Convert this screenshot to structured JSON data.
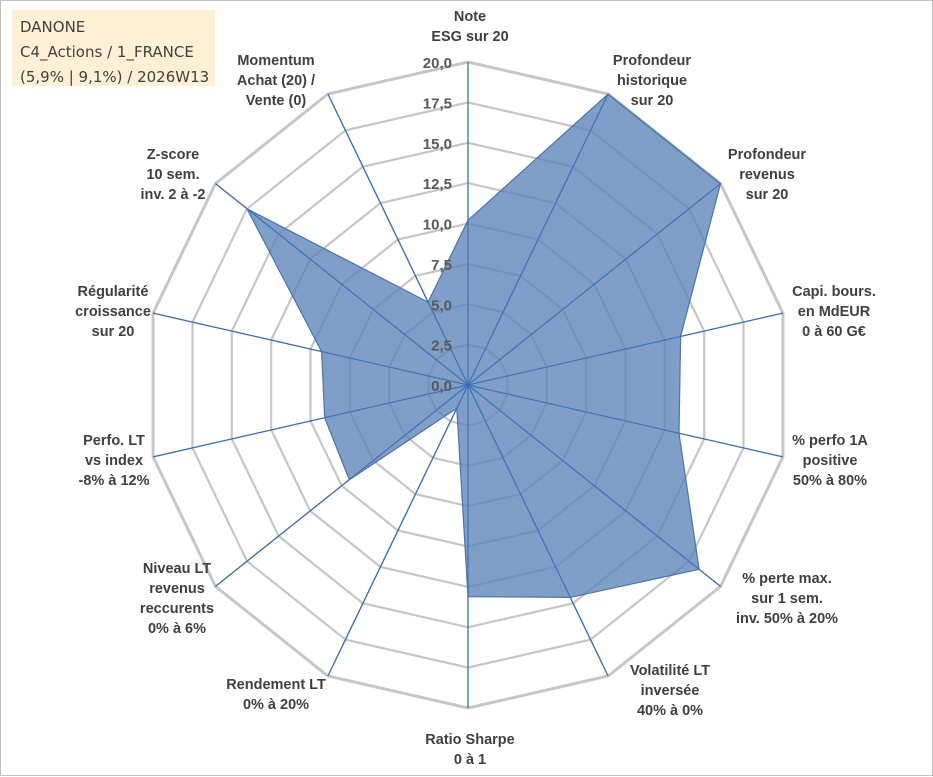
{
  "info": {
    "line1": "DANONE",
    "line2": "C4_Actions / 1_FRANCE",
    "line3": "(5,9% | 9,1%) / 2026W13"
  },
  "colors": {
    "fill": "#5b84b8",
    "fill_opacity": 0.78,
    "axis_line": "#3a6fb5",
    "grid": "#c6c6c6",
    "label_text": "#404040"
  },
  "chart_data": {
    "type": "radar",
    "title": "",
    "rmin": 0,
    "rmax": 20,
    "tick_values": [
      0,
      2.5,
      5,
      7.5,
      10,
      12.5,
      15,
      17.5,
      20
    ],
    "tick_labels": [
      "0,0",
      "2,5",
      "5,0",
      "7,5",
      "10,0",
      "12,5",
      "15,0",
      "17,5",
      "20,0"
    ],
    "axes": [
      {
        "label": [
          "Note",
          "ESG sur 20"
        ],
        "value": 10.2
      },
      {
        "label": [
          "Profondeur",
          "historique",
          "sur 20"
        ],
        "value": 20
      },
      {
        "label": [
          "Profondeur",
          "revenus",
          "sur 20"
        ],
        "value": 20
      },
      {
        "label": [
          "Capi. bours.",
          "en MdEUR",
          "0 à 60 G€"
        ],
        "value": 13.5
      },
      {
        "label": [
          "% perfo 1A",
          "positive",
          "50% à 80%"
        ],
        "value": 13.4
      },
      {
        "label": [
          "% perte max.",
          "sur 1 sem.",
          "inv. 50% à 20%"
        ],
        "value": 18.3
      },
      {
        "label": [
          "Volatilité LT",
          "inversée",
          "40% à 0%"
        ],
        "value": 14.6
      },
      {
        "label": [
          "Ratio Sharpe",
          "0 à 1"
        ],
        "value": 13.1
      },
      {
        "label": [
          "Rendement LT",
          "0% à 20%"
        ],
        "value": 1.6
      },
      {
        "label": [
          "Niveau LT",
          "revenus",
          "reccurents",
          "0% à 6%"
        ],
        "value": 9.4
      },
      {
        "label": [
          "Perfo. LT",
          "vs index",
          "-8% à 12%"
        ],
        "value": 9.1
      },
      {
        "label": [
          "Régularité",
          "croissance",
          "sur 20"
        ],
        "value": 9.3
      },
      {
        "label": [
          "Z-score",
          "10 sem.",
          "inv. 2 à -2"
        ],
        "value": 17.5
      },
      {
        "label": [
          "Momentum",
          "Achat (20) /",
          "Vente (0)"
        ],
        "value": 5.7
      }
    ]
  }
}
